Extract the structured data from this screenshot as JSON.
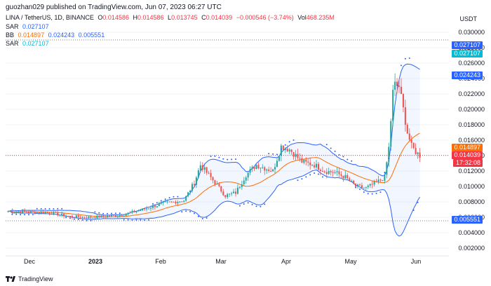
{
  "header": {
    "published": "guozhan029 published on TradingView.com, Jun 07, 2023 06:27 UTC"
  },
  "legend": {
    "symbol": "LINA / TetherUS, 1D, BINANCE",
    "o_label": "O",
    "o_value": "0.014586",
    "h_label": "H",
    "h_value": "0.014586",
    "l_label": "L",
    "l_value": "0.013745",
    "c_label": "C",
    "c_value": "0.014039",
    "change": "−0.000546 (−3.74%)",
    "vol_label": "Vol",
    "vol_value": "468.235M",
    "sar1_label": "SAR",
    "sar1_value": "0.027107",
    "bb_label": "BB",
    "bb_basis": "0.014897",
    "bb_upper": "0.024243",
    "bb_lower": "0.005551",
    "sar2_label": "SAR",
    "sar2_value": "0.027107"
  },
  "axis": {
    "title": "USDT",
    "y_ticks": [
      "0.030000",
      "0.028000",
      "0.026000",
      "0.024000",
      "0.022000",
      "0.020000",
      "0.018000",
      "0.016000",
      "0.014000",
      "0.012000",
      "0.010000",
      "0.008000",
      "0.006000",
      "0.004000",
      "0.002000"
    ],
    "x_ticks": [
      "Dec",
      "2023",
      "Feb",
      "Mar",
      "Apr",
      "May",
      "Jun"
    ]
  },
  "price_tags": {
    "sar_a": "0.027107",
    "sar_b": "0.027107",
    "bb_upper": "0.024243",
    "bb_basis": "0.014897",
    "last_price": "0.014039",
    "countdown": "17:32:08",
    "bb_lower": "0.005551"
  },
  "colors": {
    "up": "#26a69a",
    "down": "#ef5350",
    "bb_band": "#2962ff",
    "bb_basis": "#ff6d00",
    "sar": "#2962ff",
    "sar2": "#00bcd4",
    "price_line": "#f23645"
  },
  "brand": {
    "name": "TradingView",
    "icon": "tradingview-logo-icon"
  }
}
